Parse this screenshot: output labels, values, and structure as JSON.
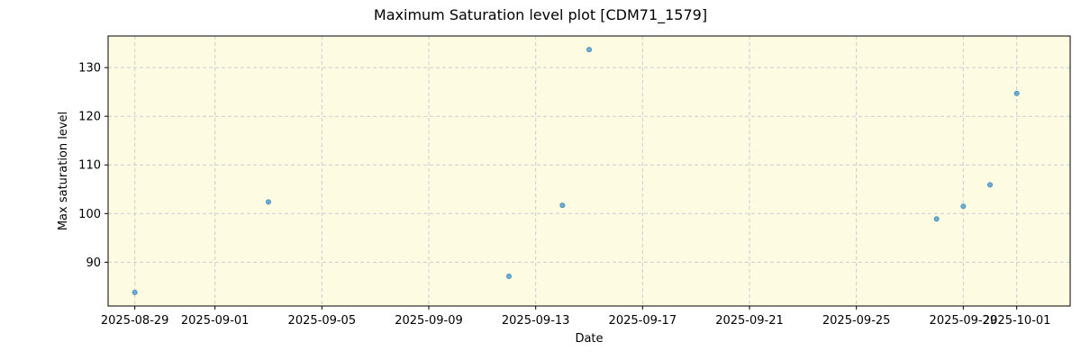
{
  "chart_data": {
    "type": "scatter",
    "title": "Maximum Saturation level plot [CDM71_1579]",
    "xlabel": "Date",
    "ylabel": "Max saturation level",
    "xlim": [
      "2025-08-28",
      "2025-10-03"
    ],
    "ylim": [
      81,
      136.5
    ],
    "x_ticks": [
      "2025-08-29",
      "2025-09-01",
      "2025-09-05",
      "2025-09-09",
      "2025-09-13",
      "2025-09-17",
      "2025-09-21",
      "2025-09-25",
      "2025-09-29",
      "2025-10-01"
    ],
    "y_ticks": [
      90,
      100,
      110,
      120,
      130
    ],
    "grid": true,
    "background_color": "#fdfce2",
    "marker_color": "#6aaed6",
    "points": [
      {
        "x": "2025-08-29",
        "y": 83.8
      },
      {
        "x": "2025-09-03",
        "y": 102.4
      },
      {
        "x": "2025-09-12",
        "y": 87.1
      },
      {
        "x": "2025-09-14",
        "y": 101.7
      },
      {
        "x": "2025-09-15",
        "y": 133.7
      },
      {
        "x": "2025-09-28",
        "y": 98.9
      },
      {
        "x": "2025-09-29",
        "y": 101.5
      },
      {
        "x": "2025-09-30",
        "y": 105.9
      },
      {
        "x": "2025-10-01",
        "y": 124.7
      }
    ]
  }
}
